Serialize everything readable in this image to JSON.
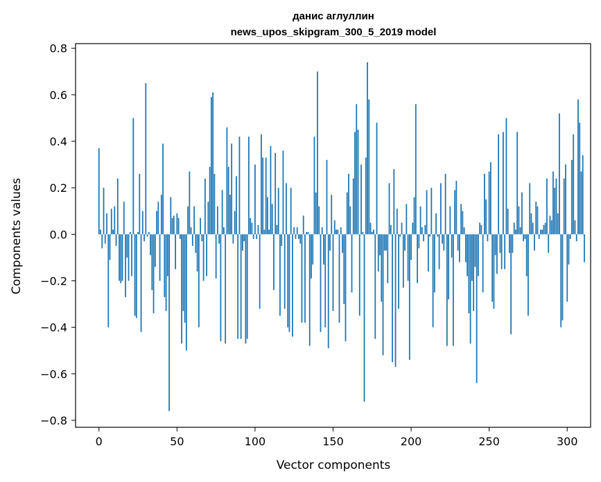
{
  "chart_data": {
    "type": "bar",
    "title": "данис аглуллин",
    "subtitle": "news_upos_skipgram_300_5_2019 model",
    "xlabel": "Vector components",
    "ylabel": "Components values",
    "xlim": [
      -15,
      315
    ],
    "ylim": [
      -0.83,
      0.82
    ],
    "xticks": [
      0,
      50,
      100,
      150,
      200,
      250,
      300
    ],
    "xtick_labels": [
      "0",
      "50",
      "100",
      "150",
      "200",
      "250",
      "300"
    ],
    "yticks": [
      -0.8,
      -0.6,
      -0.4,
      -0.2,
      0.0,
      0.2,
      0.4,
      0.6,
      0.8
    ],
    "ytick_labels": [
      "−0.8",
      "−0.6",
      "−0.4",
      "−0.2",
      "0.0",
      "0.2",
      "0.4",
      "0.6",
      "0.8"
    ],
    "grid": false,
    "bar_color": "#1f77b4",
    "values": [
      0.37,
      0.02,
      -0.06,
      0.2,
      -0.04,
      0.09,
      -0.4,
      -0.11,
      0.11,
      0.02,
      0.12,
      -0.05,
      0.24,
      -0.2,
      -0.21,
      -0.2,
      0.14,
      -0.27,
      -0.1,
      -0.2,
      0.01,
      -0.18,
      0.5,
      -0.35,
      -0.36,
      0.01,
      0.26,
      -0.42,
      0.1,
      -0.03,
      0.65,
      -0.01,
      0.01,
      -0.09,
      -0.24,
      -0.34,
      -0.14,
      0.1,
      0.14,
      -0.2,
      0.17,
      0.39,
      -0.27,
      -0.33,
      -0.18,
      -0.76,
      0.16,
      0.07,
      0.08,
      -0.15,
      0.09,
      0.07,
      -0.02,
      -0.47,
      -0.33,
      -0.38,
      -0.5,
      0.12,
      0.27,
      0.03,
      -0.05,
      0.12,
      -0.08,
      -0.16,
      -0.4,
      0.07,
      -0.03,
      -0.2,
      0.24,
      -0.18,
      0.14,
      0.29,
      0.59,
      0.61,
      0.26,
      -0.19,
      0.12,
      -0.04,
      -0.46,
      0.19,
      0.03,
      -0.47,
      0.46,
      0.29,
      0.17,
      0.39,
      -0.04,
      0.1,
      0.25,
      -0.45,
      0.42,
      -0.45,
      -0.07,
      -0.03,
      -0.47,
      -0.45,
      0.42,
      0.07,
      0.05,
      -0.02,
      0.3,
      -0.02,
      0.04,
      -0.32,
      0.43,
      0.33,
      0.02,
      0.33,
      0.16,
      0.02,
      0.38,
      0.13,
      -0.24,
      0.35,
      0.04,
      0.2,
      -0.35,
      -0.05,
      0.36,
      -0.32,
      0.22,
      -0.4,
      -0.42,
      0.2,
      -0.44,
      0.03,
      -0.02,
      0.03,
      -0.02,
      -0.04,
      -0.38,
      0.08,
      -0.38,
      0.01,
      0.01,
      -0.48,
      -0.19,
      -0.13,
      0.42,
      0.18,
      0.7,
      0.12,
      -0.42,
      0.03,
      -0.13,
      -0.4,
      0.32,
      -0.49,
      -0.07,
      0.17,
      -0.33,
      0.06,
      0.02,
      0.02,
      -0.38,
      0.03,
      -0.08,
      -0.3,
      -0.46,
      0.18,
      0.26,
      0.12,
      -0.25,
      0.24,
      0.44,
      0.56,
      0.45,
      -0.35,
      0.3,
      0.01,
      -0.72,
      0.33,
      0.74,
      0.58,
      0.05,
      0.01,
      0.02,
      -0.45,
      0.48,
      -0.16,
      -0.09,
      -0.29,
      -0.52,
      -0.07,
      -0.07,
      -0.21,
      0.22,
      0.04,
      -0.55,
      0.28,
      -0.57,
      0.11,
      -0.32,
      -0.01,
      0.05,
      -0.23,
      -0.07,
      0.13,
      -0.2,
      -0.54,
      -0.11,
      0.05,
      0.16,
      0.56,
      -0.21,
      -0.06,
      0.12,
      0.03,
      -0.03,
      0.04,
      0.19,
      -0.16,
      -0.01,
      0.2,
      -0.4,
      -0.25,
      0.09,
      -0.01,
      -0.15,
      0.22,
      -0.04,
      -0.07,
      0.26,
      -0.48,
      -0.28,
      0.12,
      -0.1,
      -0.48,
      0.19,
      0.23,
      -0.07,
      -0.12,
      0.13,
      0.1,
      0.03,
      -0.12,
      -0.18,
      -0.34,
      -0.47,
      -0.2,
      -0.33,
      -0.14,
      -0.64,
      -0.18,
      0.05,
      0.04,
      -0.25,
      0.26,
      0.15,
      -0.03,
      0.27,
      0.31,
      -0.29,
      -0.32,
      -0.09,
      -0.17,
      0.43,
      -0.08,
      -0.15,
      0.44,
      -0.15,
      0.5,
      0.11,
      -0.08,
      -0.43,
      -0.08,
      0.05,
      0.02,
      0.44,
      0.12,
      0.03,
      0.18,
      -0.03,
      -0.02,
      -0.18,
      -0.35,
      0.22,
      0.09,
      0.05,
      -0.07,
      0.14,
      0.12,
      -0.02,
      0.02,
      0.02,
      0.04,
      0.05,
      0.24,
      -0.08,
      0.08,
      0.06,
      0.27,
      0.2,
      0.24,
      0.09,
      0.52,
      -0.4,
      -0.37,
      0.24,
      0.3,
      -0.29,
      -0.13,
      -0.02,
      0.32,
      0.43,
      0.06,
      -0.03,
      0.58,
      0.48,
      0.27,
      0.34,
      -0.12
    ]
  }
}
